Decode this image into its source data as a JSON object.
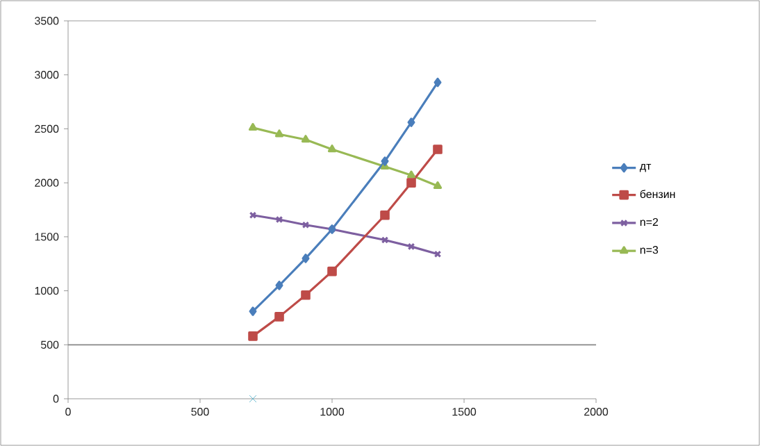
{
  "chart_data": {
    "type": "line",
    "xlim": [
      0,
      2000
    ],
    "ylim": [
      0,
      3500
    ],
    "xticks": [
      0,
      500,
      1000,
      1500,
      2000
    ],
    "yticks": [
      0,
      500,
      1000,
      1500,
      2000,
      2500,
      3000,
      3500
    ],
    "legend": "right",
    "grid": false,
    "ref_lines": [
      {
        "axis": "y",
        "value": 500,
        "color": "#868686"
      }
    ],
    "series": [
      {
        "name": "дт",
        "color": "#4a7ebb",
        "marker": "diamond",
        "x": [
          700,
          800,
          900,
          1000,
          1200,
          1300,
          1400
        ],
        "values": [
          810,
          1050,
          1300,
          1570,
          2200,
          2560,
          2930
        ]
      },
      {
        "name": "бензин",
        "color": "#be4b48",
        "marker": "square",
        "x": [
          700,
          800,
          900,
          1000,
          1200,
          1300,
          1400
        ],
        "values": [
          580,
          760,
          960,
          1180,
          1700,
          2000,
          2310
        ]
      },
      {
        "name": "n=2",
        "color": "#7d5fa0",
        "marker": "cross",
        "x": [
          700,
          800,
          900,
          1000,
          1200,
          1300,
          1400
        ],
        "values": [
          1700,
          1660,
          1610,
          1570,
          1470,
          1410,
          1340
        ]
      },
      {
        "name": "n=3",
        "color": "#98b954",
        "marker": "triangle",
        "x": [
          700,
          800,
          900,
          1000,
          1200,
          1300,
          1400
        ],
        "values": [
          2510,
          2450,
          2400,
          2310,
          2150,
          2070,
          1970
        ]
      },
      {
        "color": "#4bacc6",
        "marker": "cross",
        "type": "scatter",
        "x": [
          700
        ],
        "values": [
          0
        ]
      }
    ]
  }
}
